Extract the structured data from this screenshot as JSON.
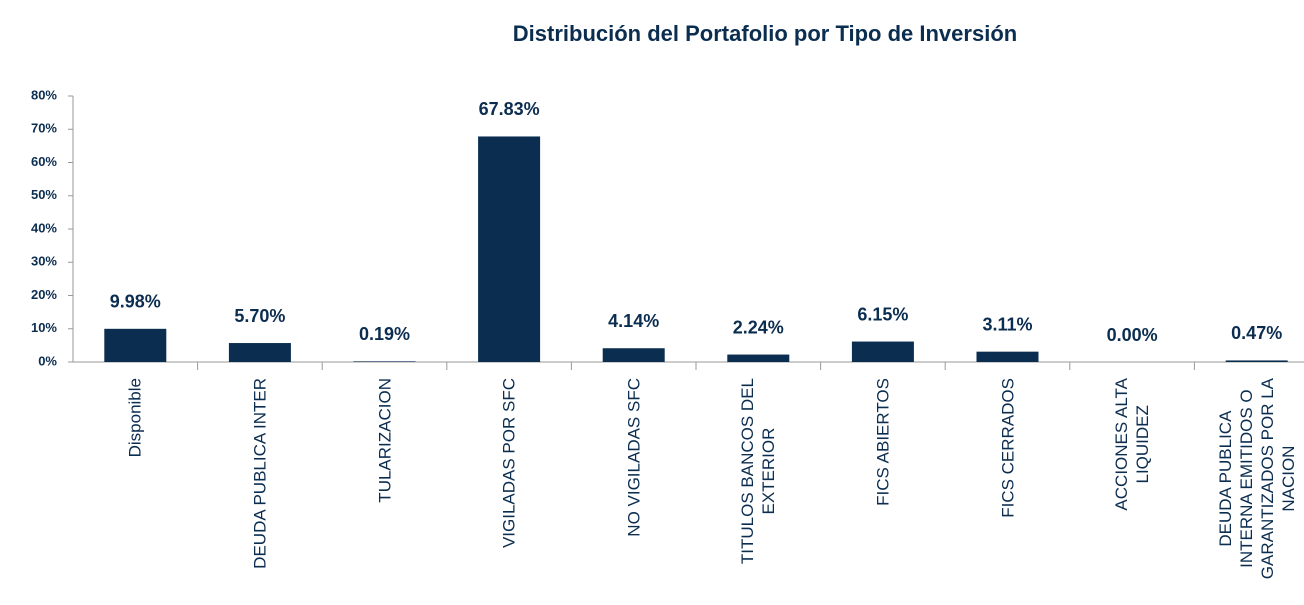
{
  "chart_data": {
    "type": "bar",
    "title": "Distribución del  Portafolio por Tipo de Inversión",
    "categories": [
      "Disponible",
      "DEUDA PUBLICA INTER",
      "TULARIZACION",
      "VIGILADAS POR SFC",
      "NO VIGILADAS SFC",
      "TITULOS BANCOS DEL\nEXTERIOR",
      "FICS ABIERTOS",
      "FICS CERRADOS",
      "ACCIONES ALTA\nLIQUIDEZ",
      "DEUDA PUBLICA\nINTERNA EMITIDOS O\nGARANTIZADOS POR LA\nNACION"
    ],
    "values": [
      9.98,
      5.7,
      0.19,
      67.83,
      4.14,
      2.24,
      6.15,
      3.11,
      0.0,
      0.47
    ],
    "value_labels": [
      "9.98%",
      "5.70%",
      "0.19%",
      "67.83%",
      "4.14%",
      "2.24%",
      "6.15%",
      "3.11%",
      "0.00%",
      "0.47%"
    ],
    "color": "#0b2d50",
    "ylim": [
      0,
      80
    ],
    "yticks": [
      {
        "value": 0,
        "label": "0%"
      },
      {
        "value": 10,
        "label": "10%"
      },
      {
        "value": 20,
        "label": "20%"
      },
      {
        "value": 30,
        "label": "30%"
      },
      {
        "value": 40,
        "label": "40%"
      },
      {
        "value": 50,
        "label": "50%"
      },
      {
        "value": 60,
        "label": "60%"
      },
      {
        "value": 70,
        "label": "70%"
      },
      {
        "value": 80,
        "label": "80%"
      }
    ],
    "grid": false
  }
}
